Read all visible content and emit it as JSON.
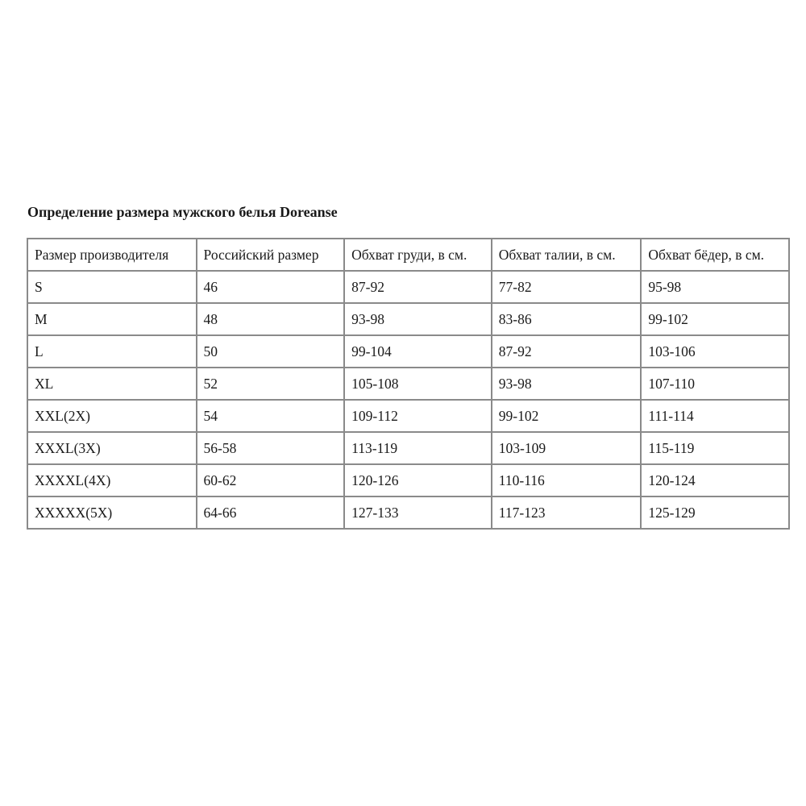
{
  "title": "Определение размера мужского белья Doreanse",
  "table": {
    "headers": [
      "Размер производителя",
      "Российский размер",
      "Обхват груди, в см.",
      "Обхват талии, в см.",
      "Обхват бёдер, в см."
    ],
    "rows": [
      [
        "S",
        "46",
        "87-92",
        "77-82",
        "95-98"
      ],
      [
        "M",
        "48",
        "93-98",
        "83-86",
        "99-102"
      ],
      [
        "L",
        "50",
        "99-104",
        "87-92",
        "103-106"
      ],
      [
        "XL",
        "52",
        "105-108",
        "93-98",
        "107-110"
      ],
      [
        "XXL(2X)",
        "54",
        "109-112",
        "99-102",
        "111-114"
      ],
      [
        "XXXL(3X)",
        "56-58",
        "113-119",
        "103-109",
        "115-119"
      ],
      [
        "XXXXL(4X)",
        "60-62",
        "120-126",
        "110-116",
        "120-124"
      ],
      [
        "XXXXX(5X)",
        "64-66",
        "127-133",
        "117-123",
        "125-129"
      ]
    ]
  }
}
